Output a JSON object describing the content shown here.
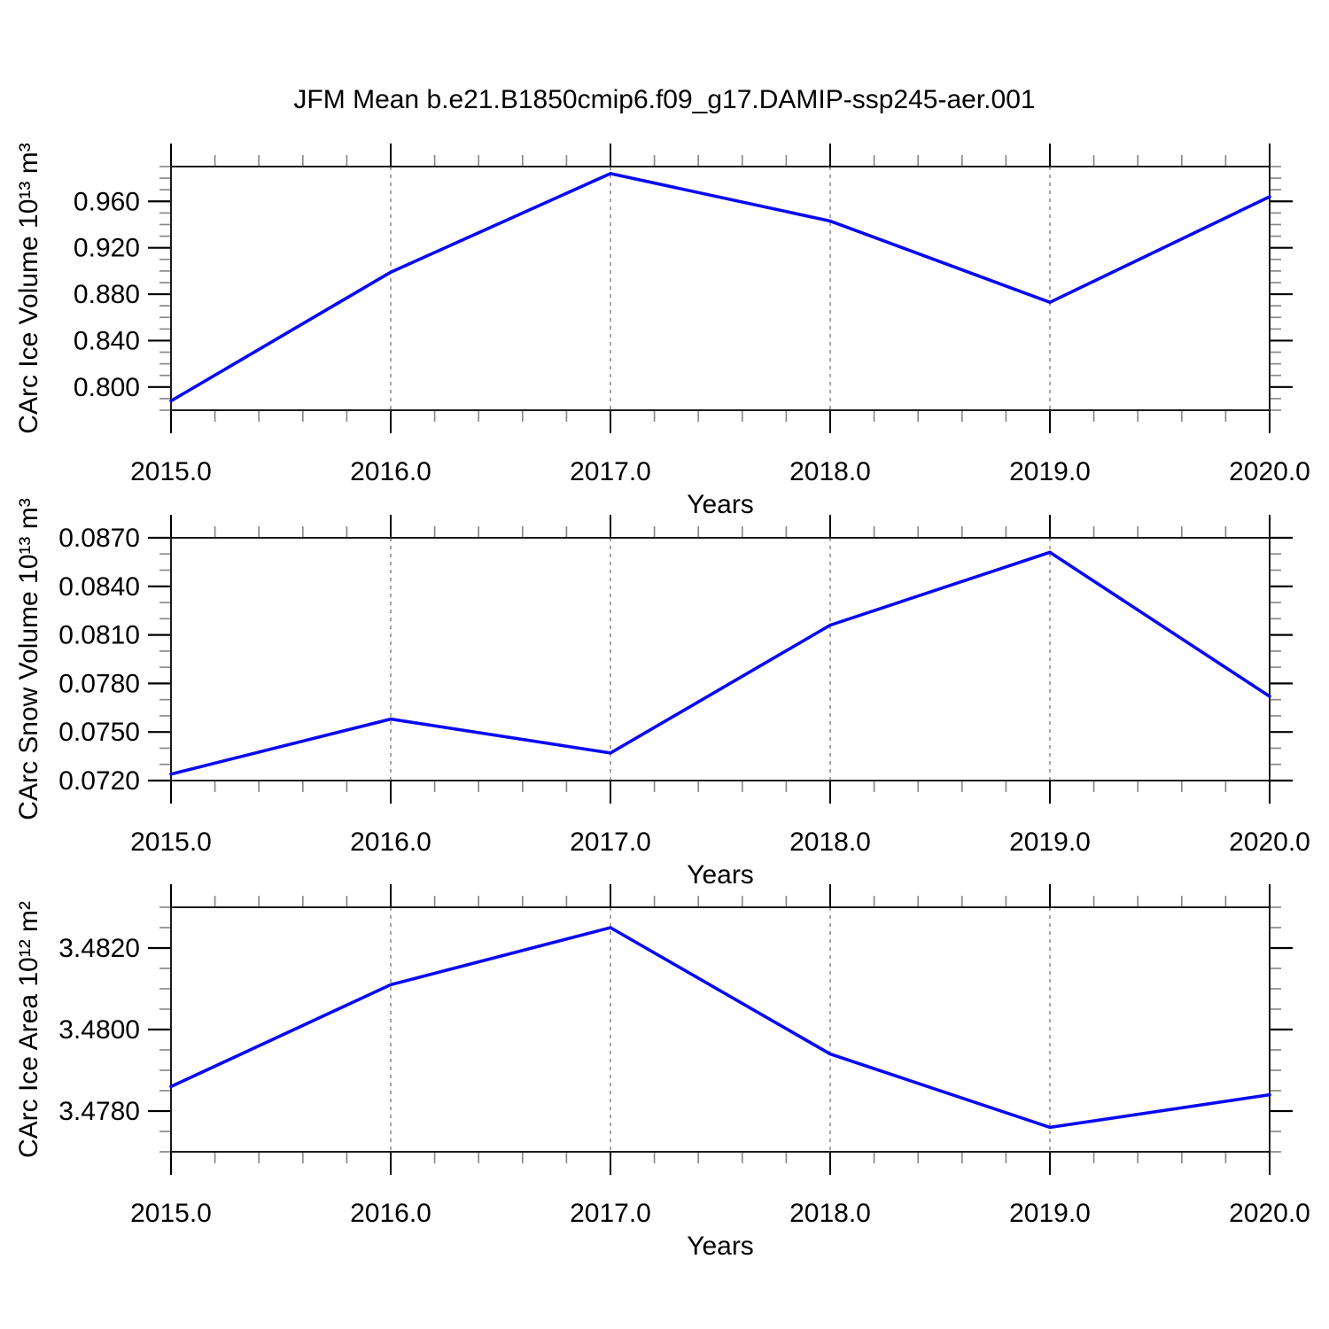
{
  "title": "JFM Mean b.e21.B1850cmip6.f09_g17.DAMIP-ssp245-aer.001",
  "colors": {
    "line": "#0808f5",
    "frame": "#1a1a1a",
    "major_tick": "#000000",
    "minor_tick": "#8a8a8a",
    "gridline": "#777777",
    "text": "#000000"
  },
  "x_axis": {
    "label": "Years",
    "xlim": [
      2015,
      2020
    ],
    "ticks": [
      {
        "v": 2015,
        "label": "2015.0"
      },
      {
        "v": 2016,
        "label": "2016.0"
      },
      {
        "v": 2017,
        "label": "2017.0"
      },
      {
        "v": 2018,
        "label": "2018.0"
      },
      {
        "v": 2019,
        "label": "2019.0"
      },
      {
        "v": 2020,
        "label": "2020.0"
      }
    ],
    "minor_step": 0.2,
    "grid_years": [
      2016,
      2017,
      2018,
      2019
    ]
  },
  "chart_data": [
    {
      "type": "line",
      "name": "ice-volume",
      "ylabel": "CArc Ice Volume 10¹³ m³",
      "x": [
        2015,
        2016,
        2017,
        2018,
        2019,
        2020
      ],
      "values": [
        0.788,
        0.899,
        0.984,
        0.943,
        0.873,
        0.964
      ],
      "ylim": [
        0.78,
        0.99
      ],
      "yticks": [
        {
          "v": 0.8,
          "label": "0.800"
        },
        {
          "v": 0.84,
          "label": "0.840"
        },
        {
          "v": 0.88,
          "label": "0.880"
        },
        {
          "v": 0.92,
          "label": "0.920"
        },
        {
          "v": 0.96,
          "label": "0.960"
        }
      ],
      "y_minor_step": 0.01,
      "grid": "dashed-vertical-at-inner-years",
      "legend": "none"
    },
    {
      "type": "line",
      "name": "snow-volume",
      "ylabel": "CArc Snow Volume 10¹³ m³",
      "x": [
        2015,
        2016,
        2017,
        2018,
        2019,
        2020
      ],
      "values": [
        0.0724,
        0.0758,
        0.0737,
        0.0816,
        0.0861,
        0.0772
      ],
      "ylim": [
        0.072,
        0.087
      ],
      "yticks": [
        {
          "v": 0.072,
          "label": "0.0720"
        },
        {
          "v": 0.075,
          "label": "0.0750"
        },
        {
          "v": 0.078,
          "label": "0.0780"
        },
        {
          "v": 0.081,
          "label": "0.0810"
        },
        {
          "v": 0.084,
          "label": "0.0840"
        },
        {
          "v": 0.087,
          "label": "0.0870"
        }
      ],
      "y_minor_step": 0.001,
      "grid": "dashed-vertical-at-inner-years",
      "legend": "none"
    },
    {
      "type": "line",
      "name": "ice-area",
      "ylabel": "CArc Ice Area 10¹² m²",
      "x": [
        2015,
        2016,
        2017,
        2018,
        2019,
        2020
      ],
      "values": [
        3.4786,
        3.4811,
        3.4825,
        3.4794,
        3.4776,
        3.4784
      ],
      "ylim": [
        3.477,
        3.483
      ],
      "yticks": [
        {
          "v": 3.478,
          "label": "3.4780"
        },
        {
          "v": 3.48,
          "label": "3.4800"
        },
        {
          "v": 3.482,
          "label": "3.4820"
        }
      ],
      "y_minor_step": 0.0005,
      "grid": "dashed-vertical-at-inner-years",
      "legend": "none"
    }
  ]
}
